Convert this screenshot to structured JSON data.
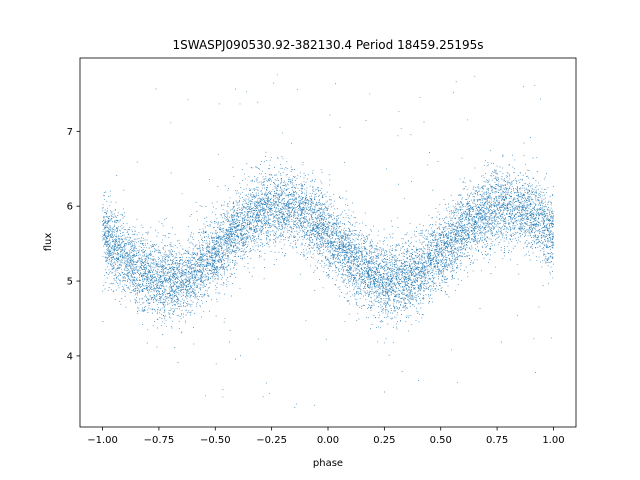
{
  "chart_data": {
    "type": "scatter",
    "title": "1SWASPJ090530.92-382130.4 Period 18459.25195s",
    "xlabel": "phase",
    "ylabel": "flux",
    "xlim": [
      -1.1,
      1.1
    ],
    "ylim": [
      3.05,
      7.98
    ],
    "x_ticks": [
      -1.0,
      -0.75,
      -0.5,
      -0.25,
      0.0,
      0.25,
      0.5,
      0.75,
      1.0
    ],
    "x_tick_labels": [
      "−1.00",
      "−0.75",
      "−0.50",
      "−0.25",
      "0.00",
      "0.25",
      "0.50",
      "0.75",
      "1.00"
    ],
    "y_ticks": [
      4,
      5,
      6,
      7
    ],
    "y_tick_labels": [
      "4",
      "5",
      "6",
      "7"
    ],
    "grid": false,
    "series": [
      {
        "marker_color": "#1f77b4",
        "x_range": [
          -1.0,
          1.0
        ],
        "n_points": 12000,
        "model": {
          "mean": 5.5,
          "amplitude": 0.5,
          "cycles_per_unit_phase": 1,
          "max_phase": -0.21,
          "min_phase": 0.29,
          "scatter_sd": 0.25,
          "outlier_range": [
            3.3,
            7.8
          ]
        },
        "key_points": [
          {
            "x": -1.0,
            "y": 5.65
          },
          {
            "x": -0.71,
            "y": 5.0
          },
          {
            "x": -0.21,
            "y": 6.0
          },
          {
            "x": 0.29,
            "y": 5.0
          },
          {
            "x": 0.79,
            "y": 6.0
          },
          {
            "x": 1.0,
            "y": 5.65
          }
        ]
      }
    ]
  }
}
